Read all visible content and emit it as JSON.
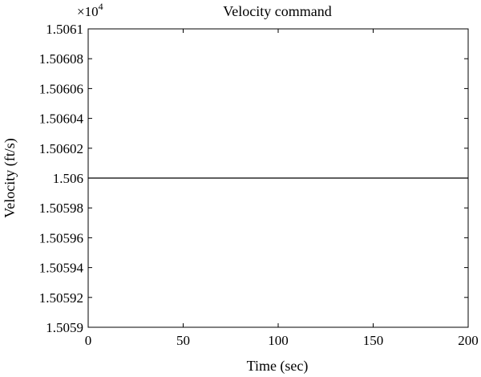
{
  "chart_data": {
    "type": "line",
    "title": "Velocity command",
    "xlabel": "Time (sec)",
    "ylabel": "Velocity (ft/s)",
    "y_multiplier": "×10",
    "y_multiplier_exp": "4",
    "xlim": [
      0,
      200
    ],
    "ylim": [
      1.5059,
      1.5061
    ],
    "x_ticks": [
      0,
      50,
      100,
      150,
      200
    ],
    "x_tick_labels": [
      "0",
      "50",
      "100",
      "150",
      "200"
    ],
    "y_ticks": [
      1.5059,
      1.50592,
      1.50594,
      1.50596,
      1.50598,
      1.506,
      1.50602,
      1.50604,
      1.50606,
      1.50608,
      1.5061
    ],
    "y_tick_labels": [
      "1.5059",
      "1.50592",
      "1.50594",
      "1.50596",
      "1.50598",
      "1.506",
      "1.50602",
      "1.50604",
      "1.50606",
      "1.50608",
      "1.5061"
    ],
    "grid": false,
    "series": [
      {
        "x": [
          0,
          200
        ],
        "y": [
          1.506,
          1.506
        ],
        "color": "#000000"
      }
    ]
  }
}
